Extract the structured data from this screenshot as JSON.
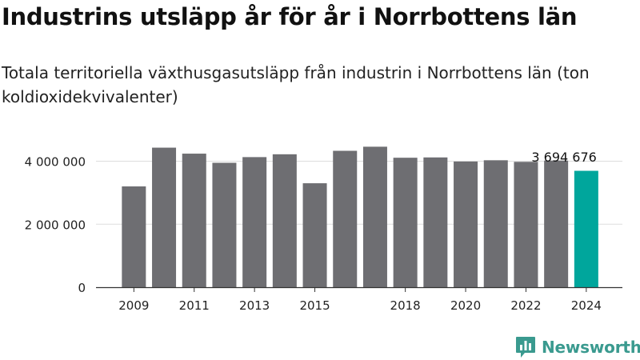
{
  "header": {
    "title": "Industrins utsläpp år för år i Norrbottens län",
    "subtitle": "Totala territoriella växthusgasutsläpp från industrin i Norrbottens län (ton koldioxidekvivalenter)"
  },
  "branding": {
    "name": "Newsworthy",
    "icon": "bar-chart-icon",
    "color": "#3a9a8f"
  },
  "colors": {
    "bar": "#6e6e72",
    "highlight": "#00a69c",
    "grid": "#dddddd",
    "axis": "#333333"
  },
  "chart_data": {
    "type": "bar",
    "categories": [
      "2009",
      "2010",
      "2011",
      "2012",
      "2013",
      "2014",
      "2015",
      "2016",
      "2017",
      "2018",
      "2019",
      "2020",
      "2021",
      "2022",
      "2023",
      "2024"
    ],
    "values": [
      3200000,
      4430000,
      4240000,
      3950000,
      4130000,
      4220000,
      3300000,
      4330000,
      4460000,
      4110000,
      4120000,
      3990000,
      4030000,
      3980000,
      4020000,
      3694676
    ],
    "x_tick_labels": [
      "2009",
      "2011",
      "2013",
      "2015",
      "2018",
      "2020",
      "2022",
      "2024"
    ],
    "y_ticks": [
      0,
      2000000,
      4000000
    ],
    "y_tick_labels": [
      "0",
      "2 000 000",
      "4 000 000"
    ],
    "ylim": [
      0,
      4800000
    ],
    "highlight_category": "2024",
    "annotation": "3 694 676",
    "grid": true,
    "legend": false
  }
}
